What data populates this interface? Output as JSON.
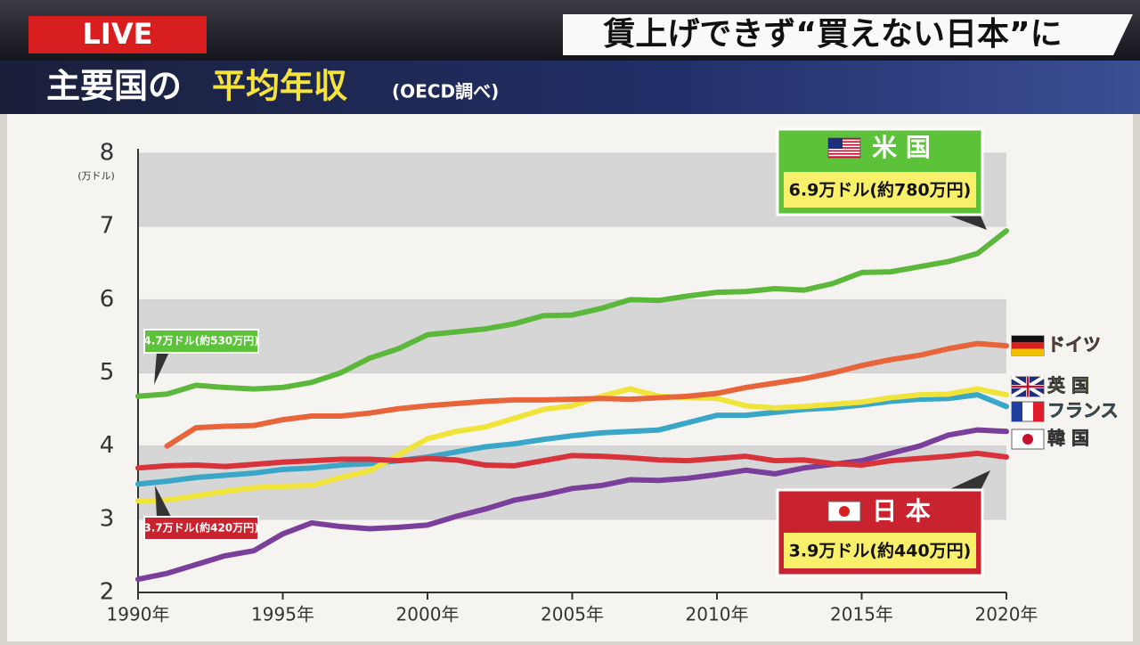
{
  "header": {
    "live": "LIVE",
    "headline": "賃上げできず“買えない日本”に"
  },
  "chart_data": {
    "type": "line",
    "title": "主要国の",
    "title_highlight": "平均年収",
    "subtitle": "(OECD調べ)",
    "y_label": "(万ドル)",
    "x": [
      1990,
      1991,
      1992,
      1993,
      1994,
      1995,
      1996,
      1997,
      1998,
      1999,
      2000,
      2001,
      2002,
      2003,
      2004,
      2005,
      2006,
      2007,
      2008,
      2009,
      2010,
      2011,
      2012,
      2013,
      2014,
      2015,
      2016,
      2017,
      2018,
      2019,
      2020
    ],
    "xlim": [
      1990,
      2020
    ],
    "xticks": [
      {
        "value": 1990,
        "label": "1990年"
      },
      {
        "value": 1995,
        "label": "1995年"
      },
      {
        "value": 2000,
        "label": "2000年"
      },
      {
        "value": 2005,
        "label": "2005年"
      },
      {
        "value": 2010,
        "label": "2010年"
      },
      {
        "value": 2015,
        "label": "2015年"
      },
      {
        "value": 2020,
        "label": "2020年"
      }
    ],
    "ylim": [
      2,
      8
    ],
    "yticks": [
      2,
      3,
      4,
      5,
      6,
      7,
      8
    ],
    "grid": true,
    "series": [
      {
        "name": "米 国",
        "color": "#5cb83a",
        "values": [
          4.68,
          4.71,
          4.83,
          4.8,
          4.78,
          4.8,
          4.87,
          5.0,
          5.2,
          5.33,
          5.52,
          5.56,
          5.6,
          5.67,
          5.78,
          5.79,
          5.88,
          6.0,
          5.99,
          6.05,
          6.1,
          6.11,
          6.15,
          6.13,
          6.22,
          6.37,
          6.38,
          6.45,
          6.52,
          6.63,
          6.94
        ]
      },
      {
        "name": "ドイツ",
        "color": "#e8643a",
        "values": [
          null,
          4.0,
          4.25,
          4.27,
          4.28,
          4.36,
          4.41,
          4.41,
          4.45,
          4.51,
          4.55,
          4.58,
          4.61,
          4.63,
          4.63,
          4.64,
          4.65,
          4.64,
          4.66,
          4.68,
          4.72,
          4.8,
          4.86,
          4.92,
          5.0,
          5.1,
          5.18,
          5.24,
          5.33,
          5.4,
          5.37
        ]
      },
      {
        "name": "英 国",
        "color": "#f0e43a",
        "values": [
          3.25,
          3.26,
          3.32,
          3.38,
          3.43,
          3.45,
          3.46,
          3.57,
          3.66,
          3.88,
          4.1,
          4.2,
          4.26,
          4.38,
          4.5,
          4.55,
          4.68,
          4.78,
          4.68,
          4.66,
          4.65,
          4.55,
          4.52,
          4.54,
          4.57,
          4.6,
          4.66,
          4.7,
          4.71,
          4.78,
          4.7
        ]
      },
      {
        "name": "フランス",
        "color": "#3aa6c8",
        "values": [
          3.48,
          3.52,
          3.57,
          3.6,
          3.63,
          3.68,
          3.7,
          3.74,
          3.76,
          3.8,
          3.85,
          3.92,
          3.99,
          4.03,
          4.09,
          4.14,
          4.18,
          4.2,
          4.22,
          4.32,
          4.42,
          4.42,
          4.46,
          4.5,
          4.52,
          4.56,
          4.61,
          4.64,
          4.65,
          4.7,
          4.54
        ]
      },
      {
        "name": "韓 国",
        "color": "#7a3f9a",
        "values": [
          2.18,
          2.26,
          2.38,
          2.5,
          2.57,
          2.8,
          2.95,
          2.9,
          2.87,
          2.89,
          2.92,
          3.04,
          3.14,
          3.26,
          3.33,
          3.42,
          3.46,
          3.54,
          3.53,
          3.56,
          3.61,
          3.67,
          3.62,
          3.7,
          3.75,
          3.8,
          3.9,
          4.0,
          4.15,
          4.22,
          4.2
        ]
      },
      {
        "name": "日 本",
        "color": "#d8323a",
        "values": [
          3.7,
          3.73,
          3.74,
          3.72,
          3.75,
          3.78,
          3.8,
          3.82,
          3.82,
          3.8,
          3.83,
          3.81,
          3.74,
          3.73,
          3.8,
          3.87,
          3.86,
          3.84,
          3.81,
          3.8,
          3.83,
          3.86,
          3.8,
          3.81,
          3.76,
          3.74,
          3.8,
          3.83,
          3.86,
          3.9,
          3.85
        ]
      }
    ],
    "annotations": [
      "6.9万ドル(約780万円)",
      "4.7万ドル(約530万円)",
      "3.7万ドル(約420万円)",
      "3.9万ドル(約440万円)"
    ]
  }
}
